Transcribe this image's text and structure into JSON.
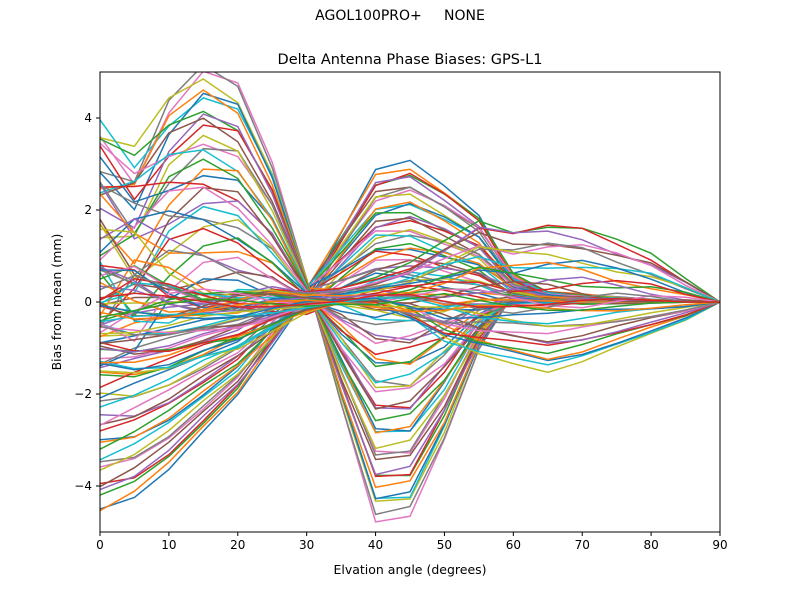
{
  "suptitle": "AGOL100PRO+     NONE",
  "chart_data": {
    "type": "line",
    "title": "Delta Antenna Phase Biases: GPS-L1",
    "xlabel": "Elvation angle (degrees)",
    "ylabel": "Bias from mean (mm)",
    "xlim": [
      0,
      90
    ],
    "ylim": [
      -5,
      5
    ],
    "xticks": [
      0,
      10,
      20,
      30,
      40,
      50,
      60,
      70,
      80,
      90
    ],
    "yticks": [
      -4,
      -2,
      0,
      2,
      4
    ],
    "grid": false,
    "x": [
      0,
      5,
      10,
      15,
      20,
      25,
      30,
      35,
      40,
      45,
      50,
      55,
      60,
      65,
      70,
      75,
      80,
      85,
      90
    ],
    "colors": [
      "#1f77b4",
      "#ff7f0e",
      "#2ca02c",
      "#d62728",
      "#9467bd",
      "#8c564b",
      "#e377c2",
      "#7f7f7f",
      "#bcbd22",
      "#17becf"
    ],
    "series_families": [
      {
        "kind": "A",
        "count": 36,
        "p": [
          -4.5,
          -4.2,
          -3.6,
          -2.8,
          -2.0,
          -0.9,
          0.2,
          1.5,
          2.8,
          3.0,
          2.5,
          1.9,
          0.6,
          0.2,
          0.15,
          0.1,
          0.05,
          0.02,
          0.0
        ],
        "v": [
          -0.8,
          -0.3,
          -0.2,
          -0.1,
          0.1,
          0.4,
          0.6,
          0.3,
          0.5,
          0.4,
          0.3,
          0.2,
          0.25,
          0.2,
          0.15,
          0.1,
          0.05,
          0.02,
          0.0
        ]
      },
      {
        "kind": "B",
        "count": 36,
        "p": [
          3.6,
          3.0,
          4.4,
          5.1,
          4.7,
          3.0,
          0.5,
          -2.2,
          -4.7,
          -4.6,
          -3.0,
          -1.0,
          0.2,
          0.05,
          0.02,
          0.0,
          0.0,
          0.0,
          0.0
        ],
        "v": [
          -3.2,
          -2.8,
          -1.5,
          -1.0,
          -0.7,
          -0.2,
          0.1,
          -0.3,
          -0.5,
          -0.3,
          0.2,
          0.3,
          0.1,
          0.05,
          0.02,
          0.0,
          0.0,
          0.0,
          0.0
        ]
      },
      {
        "kind": "C",
        "count": 16,
        "p": [
          0.5,
          0.6,
          0.2,
          0.0,
          0.1,
          0.3,
          0.2,
          0.3,
          0.5,
          0.8,
          1.3,
          1.8,
          1.6,
          1.7,
          1.6,
          1.3,
          1.0,
          0.5,
          0.0
        ],
        "v": [
          1.5,
          1.2,
          0.8,
          0.6,
          0.5,
          0.3,
          0.2,
          0.1,
          0.2,
          0.3,
          0.4,
          0.4,
          0.5,
          0.5,
          0.5,
          0.4,
          0.3,
          0.15,
          0.0
        ]
      },
      {
        "kind": "D",
        "count": 16,
        "p": [
          -1.5,
          -1.6,
          -1.5,
          -1.2,
          -1.0,
          -0.6,
          -0.2,
          0.0,
          0.0,
          -0.3,
          -0.8,
          -1.1,
          -1.3,
          -1.5,
          -1.3,
          -1.0,
          -0.7,
          -0.4,
          0.0
        ],
        "v": [
          0.5,
          0.4,
          0.3,
          0.3,
          0.3,
          0.2,
          0.2,
          0.1,
          0.3,
          0.4,
          0.5,
          0.3,
          0.2,
          0.2,
          0.2,
          0.15,
          0.1,
          0.05,
          0.0
        ]
      }
    ]
  }
}
